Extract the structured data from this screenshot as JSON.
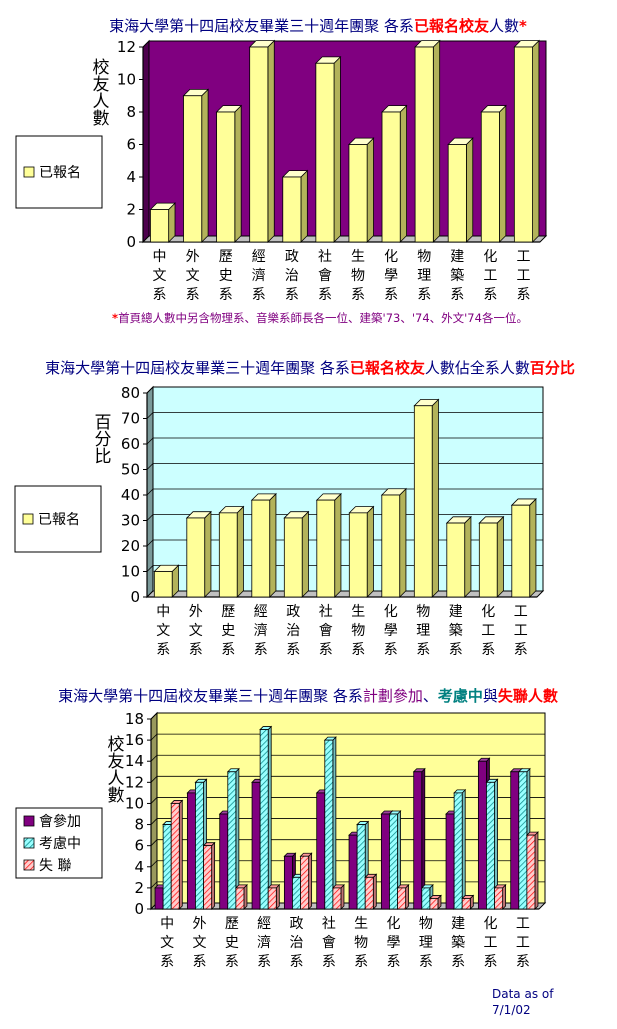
{
  "chart_data": [
    {
      "type": "bar",
      "title_segments": [
        {
          "text": "東海大學第十四屆校友畢業三十週年團聚  各系",
          "color": "#000080",
          "bold": false
        },
        {
          "text": "已報名校友",
          "color": "#ff0000",
          "bold": true
        },
        {
          "text": "人數",
          "color": "#000080",
          "bold": false
        },
        {
          "text": "*",
          "color": "#ff0000",
          "bold": true
        }
      ],
      "ylabel": "校友人數",
      "ylim": [
        0,
        12
      ],
      "ytick_step": 2,
      "ytick_labels": [
        "0",
        "2",
        "4",
        "6",
        "8",
        "10",
        "12"
      ],
      "categories": [
        "中文系",
        "外文系",
        "歷史系",
        "經濟系",
        "政治系",
        "社會系",
        "生物系",
        "化學系",
        "物理系",
        "建築系",
        "化工系",
        "工工系"
      ],
      "series": [
        {
          "name": "已報名",
          "color": "#ffff99",
          "values": [
            2,
            9,
            8,
            12,
            4,
            11,
            6,
            8,
            12,
            6,
            8,
            12
          ]
        }
      ],
      "legend_position": "left",
      "plot_bg": "#800080",
      "footnote_star": "*",
      "footnote": "首頁總人數中另含物理系、音樂系師長各一位、建築'73、'74、外文'74各一位。"
    },
    {
      "type": "bar",
      "title_segments": [
        {
          "text": "東海大學第十四屆校友畢業三十週年團聚  各系",
          "color": "#000080",
          "bold": false
        },
        {
          "text": "已報名校友",
          "color": "#ff0000",
          "bold": true
        },
        {
          "text": "人數佔全系人數",
          "color": "#000080",
          "bold": false
        },
        {
          "text": "百分比",
          "color": "#ff0000",
          "bold": true
        }
      ],
      "ylabel": "百分比",
      "ylim": [
        0,
        80
      ],
      "ytick_step": 10,
      "ytick_labels": [
        "0",
        "10",
        "20",
        "30",
        "40",
        "50",
        "60",
        "70",
        "80"
      ],
      "categories": [
        "中文系",
        "外文系",
        "歷史系",
        "經濟系",
        "政治系",
        "社會系",
        "生物系",
        "化學系",
        "物理系",
        "建築系",
        "化工系",
        "工工系"
      ],
      "series": [
        {
          "name": "已報名",
          "color": "#ffff99",
          "values": [
            10,
            31,
            33,
            38,
            31,
            38,
            33,
            40,
            75,
            29,
            29,
            36
          ]
        }
      ],
      "legend_position": "left",
      "plot_bg": "#ccffff"
    },
    {
      "type": "bar",
      "title_segments": [
        {
          "text": "東海大學第十四屆校友畢業三十週年團聚  各系",
          "color": "#000080",
          "bold": false
        },
        {
          "text": "計劃參加",
          "color": "#800080",
          "bold": false
        },
        {
          "text": "、",
          "color": "#000080",
          "bold": false
        },
        {
          "text": "考慮中",
          "color": "#008080",
          "bold": true
        },
        {
          "text": "與",
          "color": "#000080",
          "bold": false
        },
        {
          "text": "失聯人數",
          "color": "#ff0000",
          "bold": true
        }
      ],
      "ylabel": "校友人數",
      "ylim": [
        0,
        18
      ],
      "ytick_step": 2,
      "ytick_labels": [
        "0",
        "2",
        "4",
        "6",
        "8",
        "10",
        "12",
        "14",
        "16",
        "18"
      ],
      "categories": [
        "中文系",
        "外文系",
        "歷史系",
        "經濟系",
        "政治系",
        "社會系",
        "生物系",
        "化學系",
        "物理系",
        "建築系",
        "化工系",
        "工工系"
      ],
      "series": [
        {
          "name": "會參加",
          "color": "#800080",
          "pattern": "solid",
          "values": [
            2,
            11,
            9,
            12,
            5,
            11,
            7,
            9,
            13,
            9,
            14,
            13
          ]
        },
        {
          "name": "考慮中",
          "color": "#99ffff",
          "pattern": "hatch",
          "values": [
            8,
            12,
            13,
            17,
            3,
            16,
            8,
            9,
            2,
            11,
            12,
            13
          ]
        },
        {
          "name": "失  聯",
          "color": "#ff9999",
          "pattern": "hatch",
          "values": [
            10,
            6,
            2,
            2,
            5,
            2,
            3,
            2,
            1,
            1,
            2,
            7
          ]
        }
      ],
      "legend_position": "left",
      "plot_bg": "#ffff99"
    }
  ],
  "footer": {
    "line1": "Data as of",
    "line2": "7/1/02"
  }
}
